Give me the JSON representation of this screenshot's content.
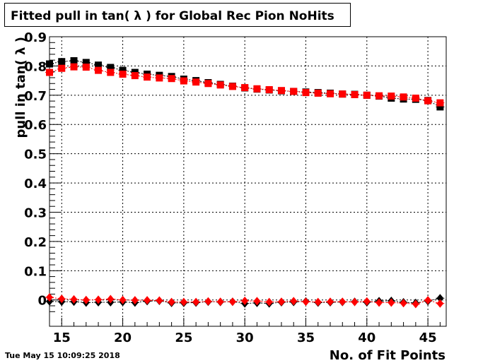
{
  "title": "Fitted pull in tan( λ ) for Global Rec Pion NoHits",
  "timestamp": "Tue May 15 10:09:25 2018",
  "chart_data": {
    "type": "scatter",
    "title": "Fitted pull in tan( λ ) for Global Rec Pion NoHits",
    "xlabel": "No. of Fit Points",
    "ylabel": "pull in tan( λ )",
    "xlim": [
      14,
      46.5
    ],
    "ylim": [
      -0.09,
      0.9
    ],
    "xticks": [
      15,
      20,
      25,
      30,
      35,
      40,
      45
    ],
    "xtick_labels": [
      "15",
      "20",
      "25",
      "30",
      "35",
      "40",
      "45"
    ],
    "yticks": [
      0,
      0.1,
      0.2,
      0.3,
      0.4,
      0.5,
      0.6,
      0.7,
      0.8,
      0.9
    ],
    "ytick_labels": [
      "0",
      "0.1",
      "0.2",
      "0.3",
      "0.4",
      "0.5",
      "0.6",
      "0.7",
      "0.8",
      "0.9"
    ],
    "grid": true,
    "x": [
      14,
      15,
      16,
      17,
      18,
      19,
      20,
      21,
      22,
      23,
      24,
      25,
      26,
      27,
      28,
      29,
      30,
      31,
      32,
      33,
      34,
      35,
      36,
      37,
      38,
      39,
      40,
      41,
      42,
      43,
      44,
      45,
      46
    ],
    "series": [
      {
        "marker": "square",
        "color": "#000000",
        "values": [
          0.807,
          0.815,
          0.818,
          0.812,
          0.803,
          0.795,
          0.785,
          0.778,
          0.772,
          0.768,
          0.764,
          0.755,
          0.75,
          0.743,
          0.737,
          0.731,
          0.725,
          0.721,
          0.718,
          0.715,
          0.713,
          0.711,
          0.709,
          0.707,
          0.704,
          0.703,
          0.7,
          0.697,
          0.69,
          0.687,
          0.686,
          0.682,
          0.66
        ]
      },
      {
        "marker": "square",
        "color": "#ff0000",
        "values": [
          0.778,
          0.792,
          0.797,
          0.796,
          0.785,
          0.778,
          0.772,
          0.767,
          0.762,
          0.759,
          0.757,
          0.749,
          0.745,
          0.74,
          0.735,
          0.73,
          0.726,
          0.722,
          0.719,
          0.716,
          0.713,
          0.709,
          0.707,
          0.705,
          0.704,
          0.702,
          0.7,
          0.698,
          0.697,
          0.694,
          0.69,
          0.681,
          0.674
        ]
      },
      {
        "marker": "diamond",
        "color": "#000000",
        "values": [
          -0.005,
          -0.006,
          -0.006,
          -0.009,
          -0.008,
          -0.008,
          -0.007,
          -0.009,
          -0.004,
          -0.003,
          -0.01,
          -0.01,
          -0.009,
          -0.006,
          -0.007,
          -0.006,
          -0.012,
          -0.01,
          -0.012,
          -0.008,
          -0.007,
          -0.005,
          -0.009,
          -0.008,
          -0.007,
          -0.006,
          -0.008,
          -0.004,
          -0.003,
          -0.008,
          -0.01,
          -0.004,
          0.006
        ]
      },
      {
        "marker": "diamond",
        "color": "#ff0000",
        "values": [
          0.009,
          0.004,
          0.002,
          0.0,
          0.001,
          0.003,
          0.0,
          -0.001,
          -0.001,
          -0.002,
          -0.007,
          -0.007,
          -0.007,
          -0.005,
          -0.006,
          -0.006,
          -0.003,
          -0.004,
          -0.007,
          -0.006,
          -0.004,
          -0.006,
          -0.007,
          -0.006,
          -0.006,
          -0.007,
          -0.005,
          -0.009,
          -0.009,
          -0.011,
          -0.014,
          -0.001,
          -0.012
        ]
      }
    ]
  }
}
